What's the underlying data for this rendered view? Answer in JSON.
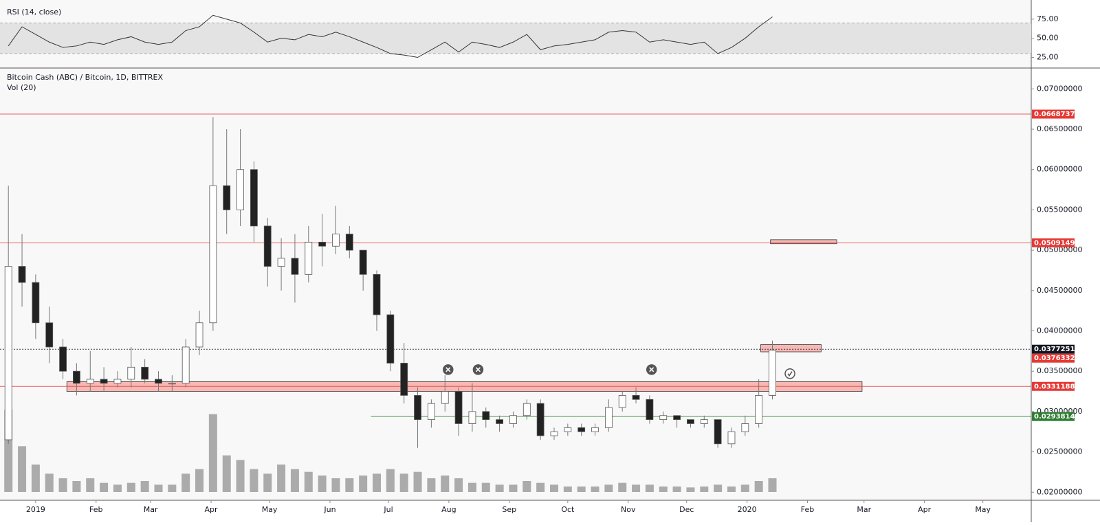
{
  "chart_data": {
    "type": "candlestick",
    "title": "Bitcoin Cash (ABC) / Bitcoin, 1D, BITTREX",
    "volume_label": "Vol (20)",
    "rsi_label": "RSI (14, close)",
    "xlim": [
      -18.3,
      510.8
    ],
    "xticks": [
      {
        "value": 0,
        "label": "2019"
      },
      {
        "value": 31,
        "label": "Feb"
      },
      {
        "value": 59,
        "label": "Mar"
      },
      {
        "value": 90,
        "label": "Apr"
      },
      {
        "value": 120,
        "label": "May"
      },
      {
        "value": 151,
        "label": "Jun"
      },
      {
        "value": 181,
        "label": "Jul"
      },
      {
        "value": 212,
        "label": "Aug"
      },
      {
        "value": 243,
        "label": "Sep"
      },
      {
        "value": 273,
        "label": "Oct"
      },
      {
        "value": 304,
        "label": "Nov"
      },
      {
        "value": 334,
        "label": "Dec"
      },
      {
        "value": 365,
        "label": "2020"
      },
      {
        "value": 396,
        "label": "Feb"
      },
      {
        "value": 425,
        "label": "Mar"
      },
      {
        "value": 456,
        "label": "Apr"
      },
      {
        "value": 486,
        "label": "May"
      }
    ],
    "ylim": [
      0.019,
      0.0725
    ],
    "yticks": [
      {
        "value": 0.02,
        "label": "0.02000000"
      },
      {
        "value": 0.025,
        "label": "0.02500000"
      },
      {
        "value": 0.03,
        "label": "0.03000000"
      },
      {
        "value": 0.035,
        "label": "0.03500000"
      },
      {
        "value": 0.04,
        "label": "0.04000000"
      },
      {
        "value": 0.045,
        "label": "0.04500000"
      },
      {
        "value": 0.05,
        "label": "0.05000000"
      },
      {
        "value": 0.055,
        "label": "0.05500000"
      },
      {
        "value": 0.06,
        "label": "0.06000000"
      },
      {
        "value": 0.065,
        "label": "0.06500000"
      },
      {
        "value": 0.07,
        "label": "0.07000000"
      }
    ],
    "candles": {
      "x": [
        -14,
        -7,
        0,
        7,
        14,
        21,
        28,
        35,
        42,
        49,
        56,
        63,
        70,
        77,
        84,
        91,
        98,
        105,
        112,
        119,
        126,
        133,
        140,
        147,
        154,
        161,
        168,
        175,
        182,
        189,
        196,
        203,
        210,
        217,
        224,
        231,
        238,
        245,
        252,
        259,
        266,
        273,
        280,
        287,
        294,
        301,
        308,
        315,
        322,
        329,
        336,
        343,
        350,
        357,
        364,
        371,
        378
      ],
      "open": [
        0.0265,
        0.048,
        0.046,
        0.041,
        0.038,
        0.035,
        0.0335,
        0.034,
        0.0335,
        0.034,
        0.0355,
        0.034,
        0.0335,
        0.0335,
        0.038,
        0.041,
        0.058,
        0.055,
        0.06,
        0.053,
        0.048,
        0.049,
        0.047,
        0.051,
        0.0505,
        0.052,
        0.05,
        0.047,
        0.042,
        0.036,
        0.032,
        0.029,
        0.031,
        0.0325,
        0.0285,
        0.03,
        0.029,
        0.0285,
        0.0295,
        0.031,
        0.027,
        0.0275,
        0.028,
        0.0275,
        0.028,
        0.0305,
        0.032,
        0.0315,
        0.029,
        0.0295,
        0.029,
        0.0285,
        0.029,
        0.026,
        0.0275,
        0.0285,
        0.032
      ],
      "high": [
        0.058,
        0.052,
        0.047,
        0.043,
        0.039,
        0.036,
        0.0375,
        0.0355,
        0.035,
        0.038,
        0.0365,
        0.035,
        0.0345,
        0.039,
        0.0425,
        0.0665,
        0.065,
        0.065,
        0.061,
        0.054,
        0.0515,
        0.052,
        0.053,
        0.0545,
        0.0555,
        0.053,
        0.05,
        0.0475,
        0.0425,
        0.0385,
        0.033,
        0.0315,
        0.0345,
        0.033,
        0.0335,
        0.0305,
        0.0295,
        0.03,
        0.0315,
        0.0315,
        0.028,
        0.0285,
        0.0285,
        0.0285,
        0.0315,
        0.0325,
        0.033,
        0.032,
        0.03,
        0.0295,
        0.029,
        0.0295,
        0.029,
        0.028,
        0.0295,
        0.034,
        0.0388
      ],
      "low": [
        0.026,
        0.043,
        0.039,
        0.036,
        0.034,
        0.032,
        0.0325,
        0.0325,
        0.033,
        0.033,
        0.0335,
        0.0325,
        0.0325,
        0.033,
        0.037,
        0.04,
        0.052,
        0.053,
        0.051,
        0.0455,
        0.045,
        0.0435,
        0.046,
        0.048,
        0.0495,
        0.049,
        0.045,
        0.04,
        0.035,
        0.031,
        0.0255,
        0.028,
        0.03,
        0.027,
        0.0275,
        0.028,
        0.0275,
        0.028,
        0.029,
        0.0265,
        0.0265,
        0.027,
        0.027,
        0.027,
        0.0275,
        0.03,
        0.031,
        0.0285,
        0.0285,
        0.028,
        0.028,
        0.028,
        0.0255,
        0.0255,
        0.027,
        0.028,
        0.0315
      ],
      "close": [
        0.048,
        0.046,
        0.041,
        0.038,
        0.035,
        0.0335,
        0.034,
        0.0335,
        0.034,
        0.0355,
        0.034,
        0.0335,
        0.0335,
        0.038,
        0.041,
        0.058,
        0.055,
        0.06,
        0.053,
        0.048,
        0.049,
        0.047,
        0.051,
        0.0505,
        0.052,
        0.05,
        0.047,
        0.042,
        0.036,
        0.032,
        0.029,
        0.031,
        0.0325,
        0.0285,
        0.03,
        0.029,
        0.0285,
        0.0295,
        0.031,
        0.027,
        0.0275,
        0.028,
        0.0275,
        0.028,
        0.0305,
        0.032,
        0.0315,
        0.029,
        0.0295,
        0.029,
        0.0285,
        0.029,
        0.026,
        0.0275,
        0.0285,
        0.032,
        0.0376
      ],
      "volume": [
        90,
        50,
        30,
        20,
        15,
        12,
        15,
        10,
        8,
        10,
        12,
        8,
        8,
        20,
        25,
        85,
        40,
        35,
        25,
        20,
        30,
        25,
        22,
        18,
        15,
        15,
        18,
        20,
        25,
        20,
        22,
        15,
        18,
        15,
        10,
        10,
        8,
        8,
        12,
        10,
        8,
        6,
        6,
        6,
        8,
        10,
        8,
        8,
        6,
        6,
        5,
        6,
        8,
        6,
        8,
        12,
        15
      ],
      "up_color": "#ffffff",
      "down_color": "#222222",
      "wick_color": "#777777",
      "volume_color": "#8a8a8a"
    },
    "rsi": {
      "values": [
        40,
        65,
        55,
        45,
        38,
        40,
        45,
        42,
        48,
        52,
        45,
        42,
        45,
        60,
        65,
        80,
        75,
        70,
        58,
        45,
        50,
        48,
        55,
        52,
        58,
        52,
        45,
        38,
        30,
        28,
        25,
        35,
        45,
        32,
        45,
        42,
        38,
        45,
        55,
        35,
        40,
        42,
        45,
        48,
        58,
        60,
        58,
        45,
        48,
        45,
        42,
        45,
        30,
        38,
        50,
        65,
        78
      ],
      "ylim": [
        12,
        100
      ],
      "band": [
        30,
        70
      ],
      "yticks": [
        {
          "value": 25,
          "label": "25.00"
        },
        {
          "value": 50,
          "label": "50.00"
        },
        {
          "value": 75,
          "label": "75.00"
        }
      ],
      "color": "#333333"
    },
    "levels": [
      {
        "value": 0.06687379,
        "color": "#e53935",
        "line": true,
        "from": -18.3
      },
      {
        "value": 0.05091492,
        "color": "#e53935",
        "line": true,
        "from": -18.3
      },
      {
        "value": 0.03772516,
        "color": "#131722",
        "line": true,
        "from": -18.3
      },
      {
        "value": 0.03763321,
        "color": "#e53935",
        "line": false,
        "from": -18.3
      },
      {
        "value": 0.03311888,
        "color": "#e53935",
        "line": true,
        "from": -18.3
      },
      {
        "value": 0.02938144,
        "color": "#2e7d32",
        "line": true,
        "from": 172
      }
    ],
    "zones": [
      {
        "x": [
          16,
          424
        ],
        "y": [
          0.0325,
          0.0337
        ]
      },
      {
        "x": [
          372,
          403
        ],
        "y": [
          0.0374,
          0.0383
        ]
      },
      {
        "x": [
          377,
          411
        ],
        "y": [
          0.0508,
          0.0513
        ]
      }
    ],
    "markers": [
      {
        "kind": "cross",
        "x": 211.6,
        "y": 0.0352
      },
      {
        "kind": "cross",
        "x": 227,
        "y": 0.0352
      },
      {
        "kind": "cross",
        "x": 316,
        "y": 0.0352
      },
      {
        "kind": "check",
        "x": 387,
        "y": 0.0347
      }
    ]
  }
}
